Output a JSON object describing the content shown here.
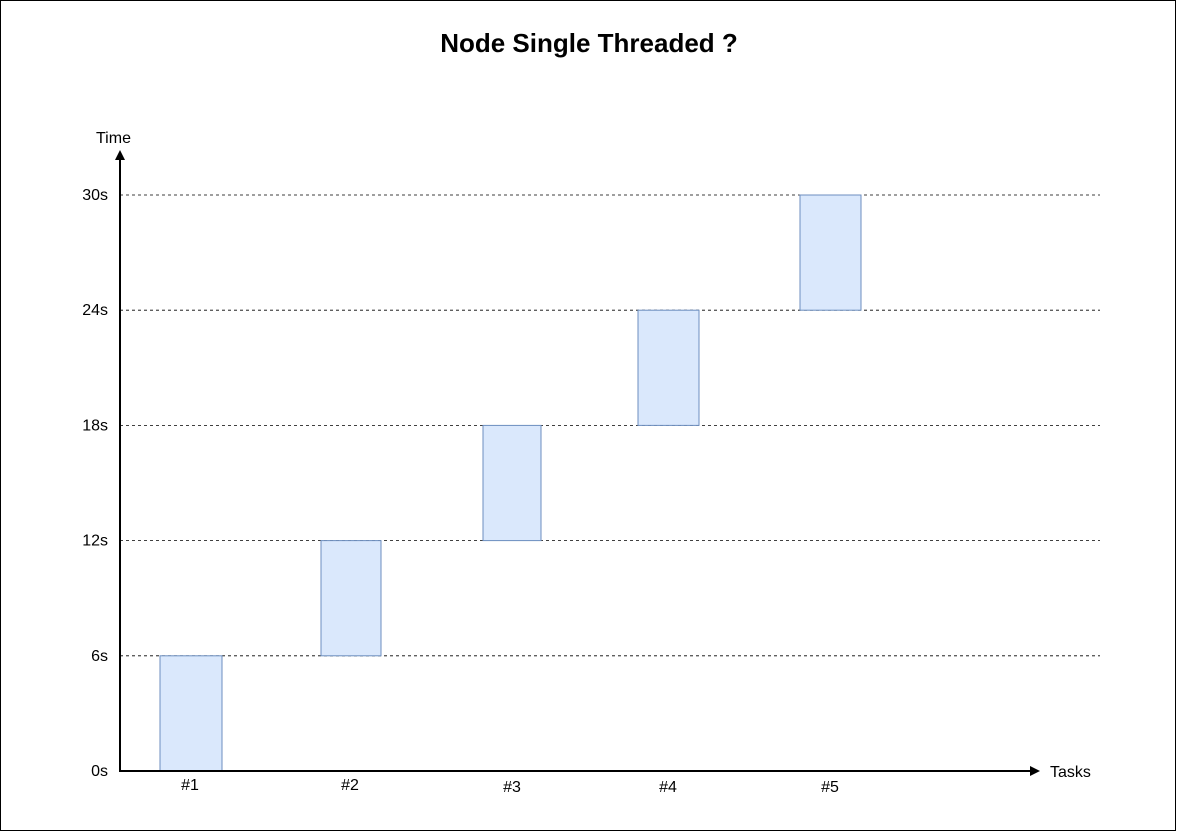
{
  "chart_data": {
    "type": "bar",
    "title": "Node Single Threaded ?",
    "xlabel": "Tasks",
    "ylabel": "Time",
    "categories": [
      "#1",
      "#2",
      "#3",
      "#4",
      "#5"
    ],
    "y_ticks": [
      "0s",
      "6s",
      "12s",
      "18s",
      "24s",
      "30s"
    ],
    "y_tick_values": [
      0,
      6,
      12,
      18,
      24,
      30
    ],
    "series": [
      {
        "values": [
          {
            "start": 0,
            "end": 6
          },
          {
            "start": 6,
            "end": 12
          },
          {
            "start": 12,
            "end": 18
          },
          {
            "start": 18,
            "end": 24
          },
          {
            "start": 24,
            "end": 30
          }
        ]
      }
    ],
    "ylim": [
      0,
      30
    ],
    "grid": "horizontal-dashed",
    "bar_fill": "#dae8fc",
    "bar_stroke": "#6c8ebf"
  }
}
